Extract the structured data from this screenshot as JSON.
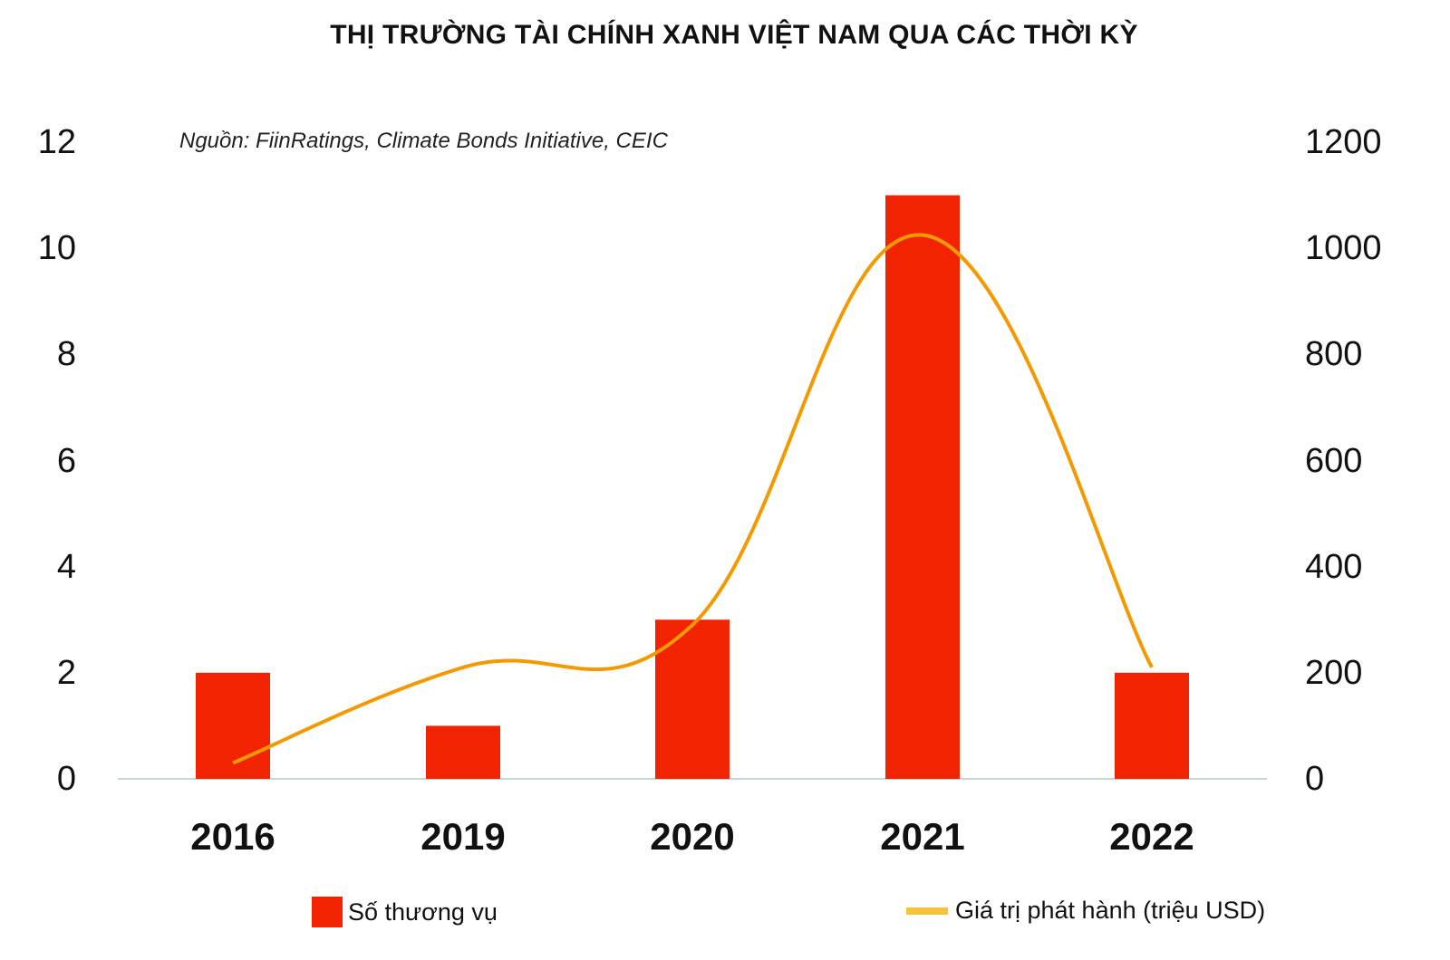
{
  "header": {
    "title": "THỊ TRƯỜNG TÀI CHÍNH XANH VIỆT NAM QUA CÁC THỜI KỲ",
    "source": "Nguồn: FiinRatings, Climate Bonds Initiative, CEIC"
  },
  "axes": {
    "left_ticks": [
      "0",
      "2",
      "4",
      "6",
      "8",
      "10",
      "12"
    ],
    "right_ticks": [
      "0",
      "200",
      "400",
      "600",
      "800",
      "1000",
      "1200"
    ],
    "categories": [
      "2016",
      "2019",
      "2020",
      "2021",
      "2022"
    ]
  },
  "legend": {
    "bar_label": "Số thương vụ",
    "line_label": "Giá trị phát hành (triệu USD)"
  },
  "colors": {
    "bar": "#f22300",
    "line": "#f29a00",
    "line_legend": "#f7c23c",
    "axis": "#c8d4dc"
  },
  "chart_data": {
    "type": "bar+line",
    "title": "THỊ TRƯỜNG TÀI CHÍNH XANH VIỆT NAM QUA CÁC THỜI KỲ",
    "subtitle": "Nguồn: FiinRatings, Climate Bonds Initiative, CEIC",
    "categories": [
      "2016",
      "2019",
      "2020",
      "2021",
      "2022"
    ],
    "series": [
      {
        "name": "Số thương vụ",
        "type": "bar",
        "axis": "left",
        "values": [
          2,
          1,
          3,
          11,
          2
        ]
      },
      {
        "name": "Giá trị phát hành (triệu USD)",
        "type": "line",
        "axis": "right",
        "smooth": true,
        "values": [
          30,
          210,
          290,
          1025,
          210
        ]
      }
    ],
    "ylim_left": [
      0,
      12
    ],
    "ylim_right": [
      0,
      1200
    ],
    "yticks_left": [
      0,
      2,
      4,
      6,
      8,
      10,
      12
    ],
    "yticks_right": [
      0,
      200,
      400,
      600,
      800,
      1000,
      1200
    ],
    "grid": false,
    "legend_position": "bottom"
  }
}
